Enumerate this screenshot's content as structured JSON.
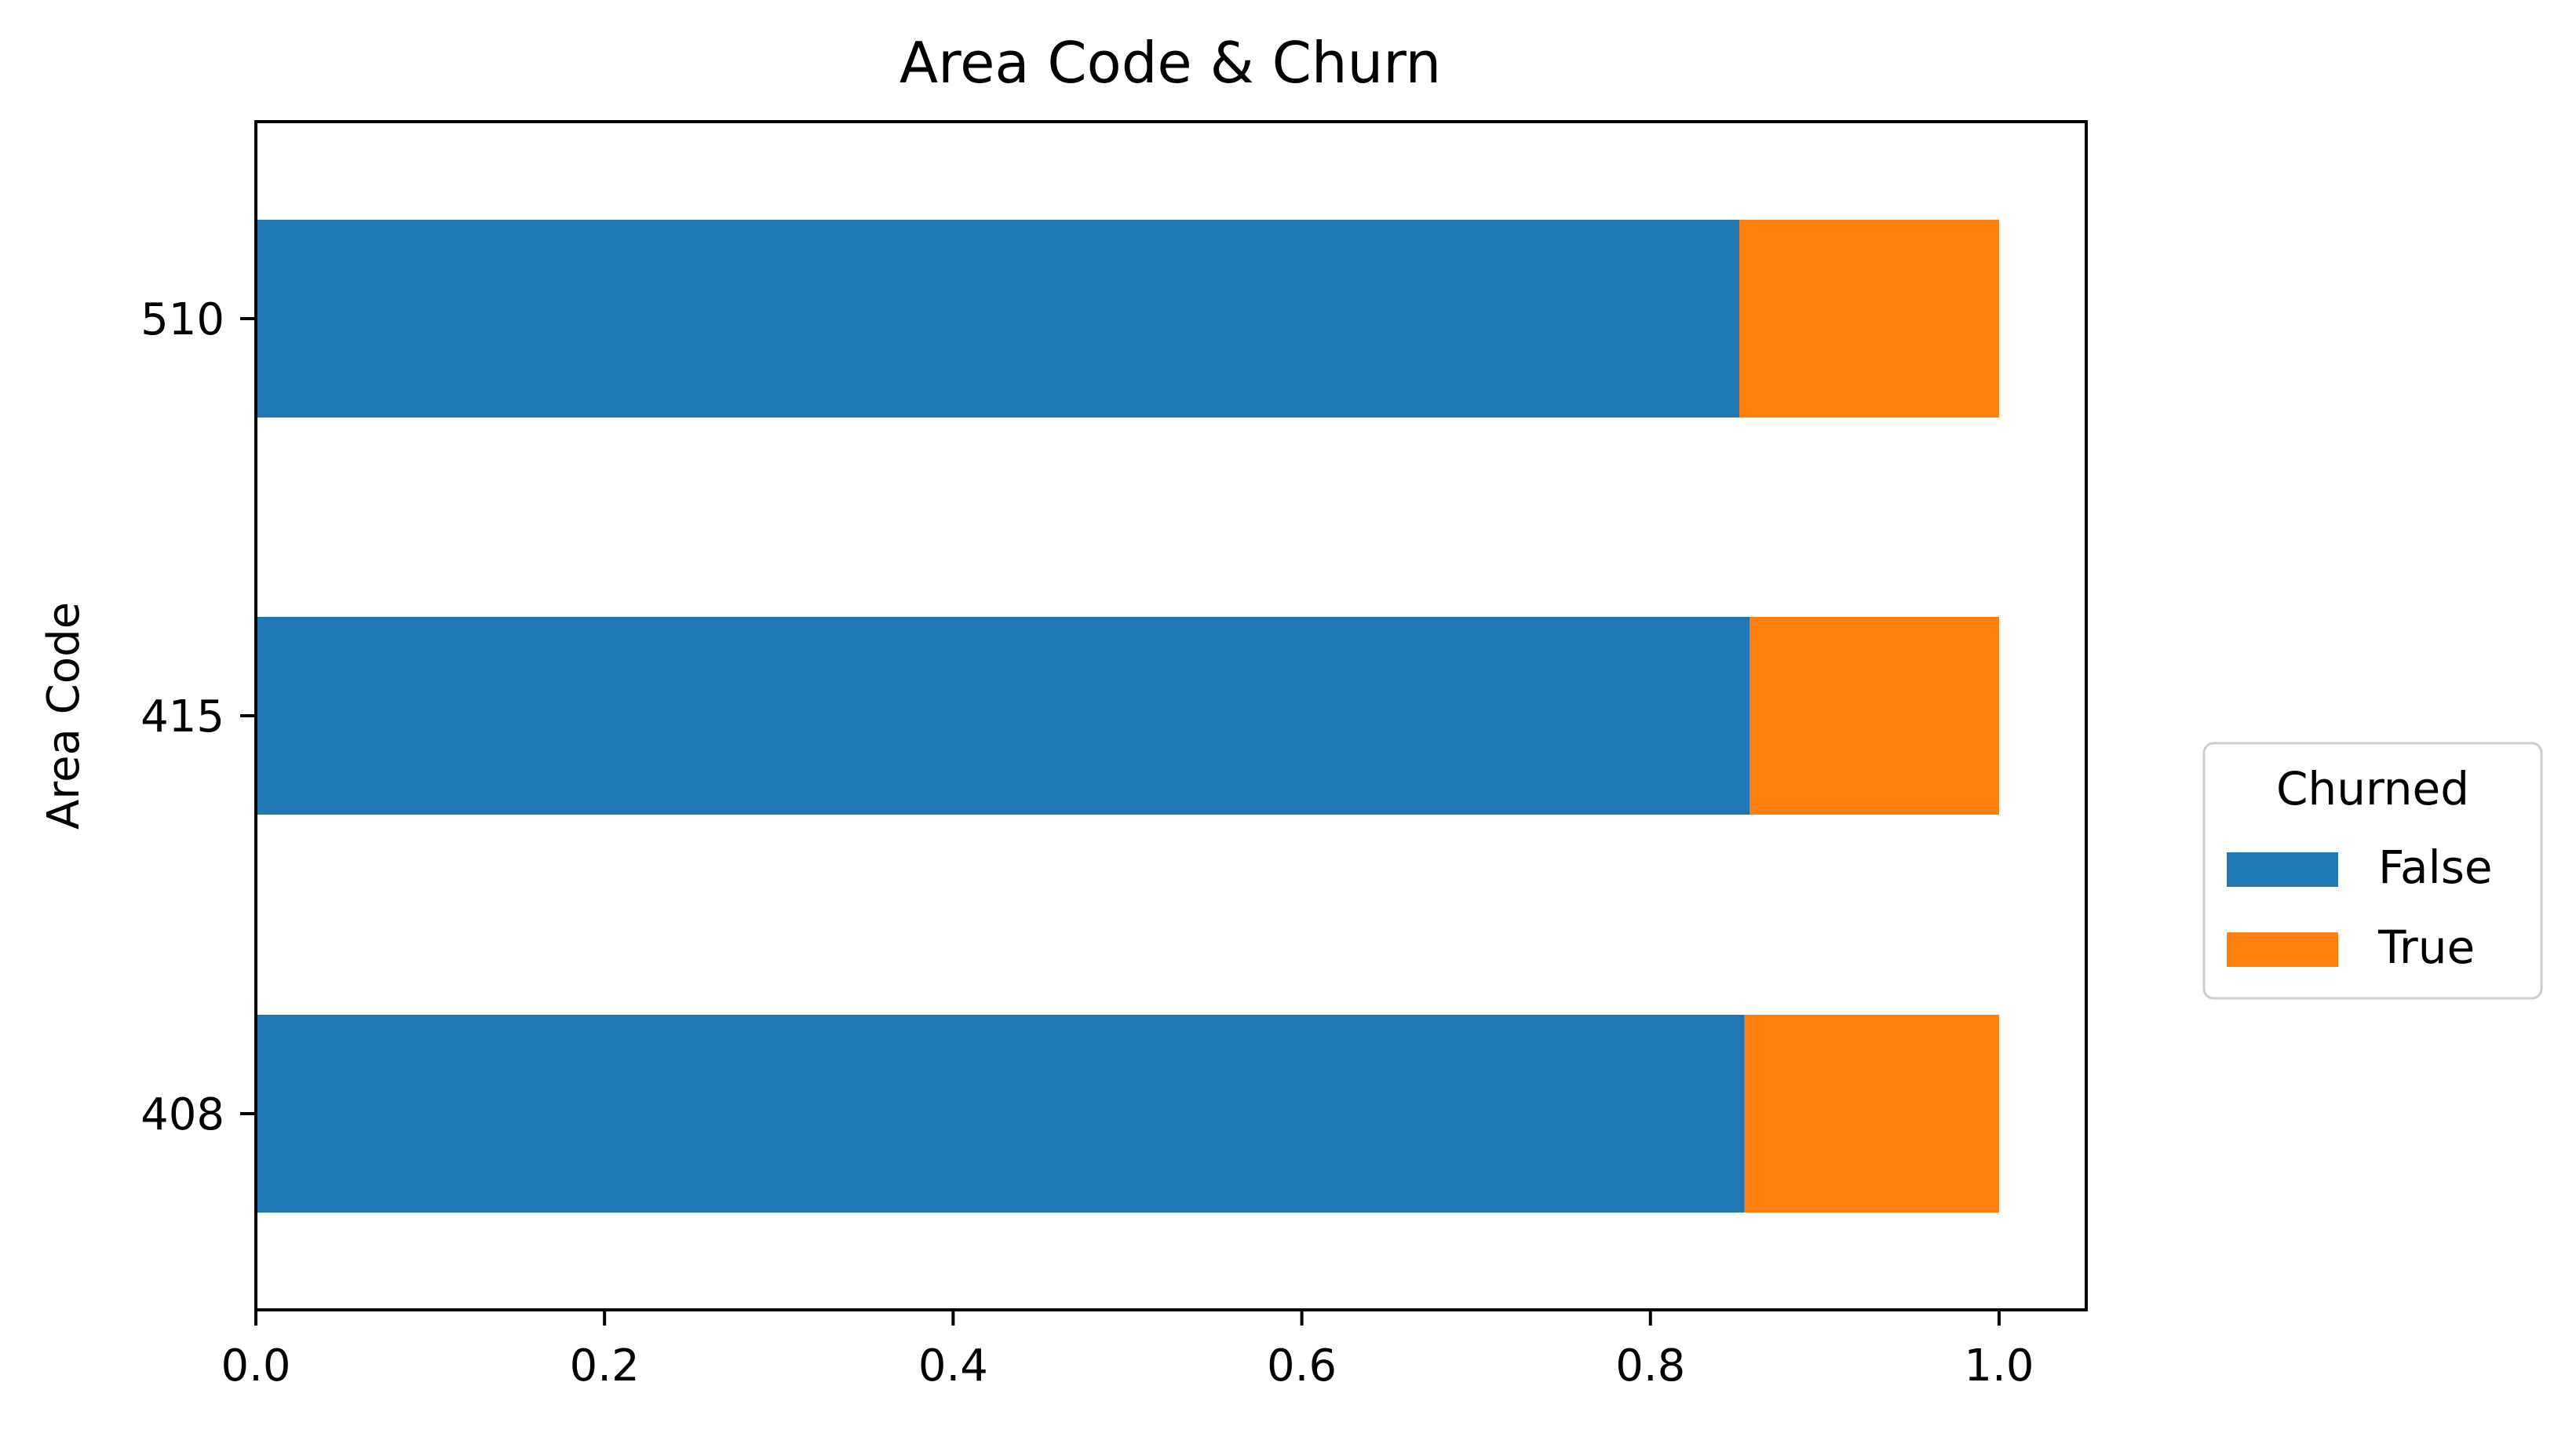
{
  "chart_data": {
    "type": "bar",
    "orientation": "horizontal",
    "stacked": true,
    "title": "Area Code & Churn",
    "xlabel": "",
    "ylabel": "Area Code",
    "categories": [
      "408",
      "415",
      "510"
    ],
    "series": [
      {
        "name": "False",
        "color": "#1f77b4",
        "values": [
          0.854,
          0.857,
          0.851
        ]
      },
      {
        "name": "True",
        "color": "#ff7f0e",
        "values": [
          0.146,
          0.143,
          0.149
        ]
      }
    ],
    "xlim": [
      0,
      1.05
    ],
    "xticks": [
      "0.0",
      "0.2",
      "0.4",
      "0.6",
      "0.8",
      "1.0"
    ],
    "grid": false,
    "legend": {
      "title": "Churned",
      "placement": "outside-right",
      "entries": [
        "False",
        "True"
      ]
    }
  }
}
